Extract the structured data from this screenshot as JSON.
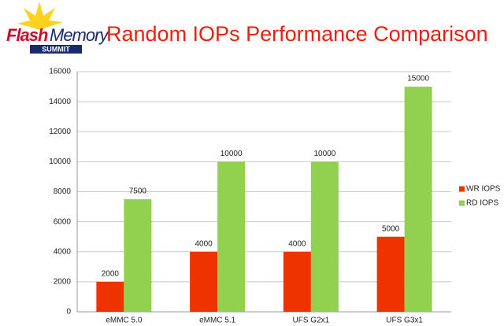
{
  "logo": {
    "word1": "Flash",
    "word2": "Memory",
    "word3": "SUMMIT"
  },
  "chart_data": {
    "type": "bar",
    "title": "Random IOPs Performance Comparison",
    "categories": [
      "eMMC 5.0",
      "eMMC 5.1",
      "UFS G2x1",
      "UFS G3x1"
    ],
    "series": [
      {
        "name": "WR IOPS",
        "color": "#ee3300",
        "values": [
          2000,
          4000,
          4000,
          5000
        ]
      },
      {
        "name": "RD IOPS",
        "color": "#92d050",
        "values": [
          7500,
          10000,
          10000,
          15000
        ]
      }
    ],
    "ylim": [
      0,
      16000
    ],
    "yticks": [
      0,
      2000,
      4000,
      6000,
      8000,
      10000,
      12000,
      14000,
      16000
    ],
    "grid": true,
    "legend": "right",
    "data_labels": true
  }
}
